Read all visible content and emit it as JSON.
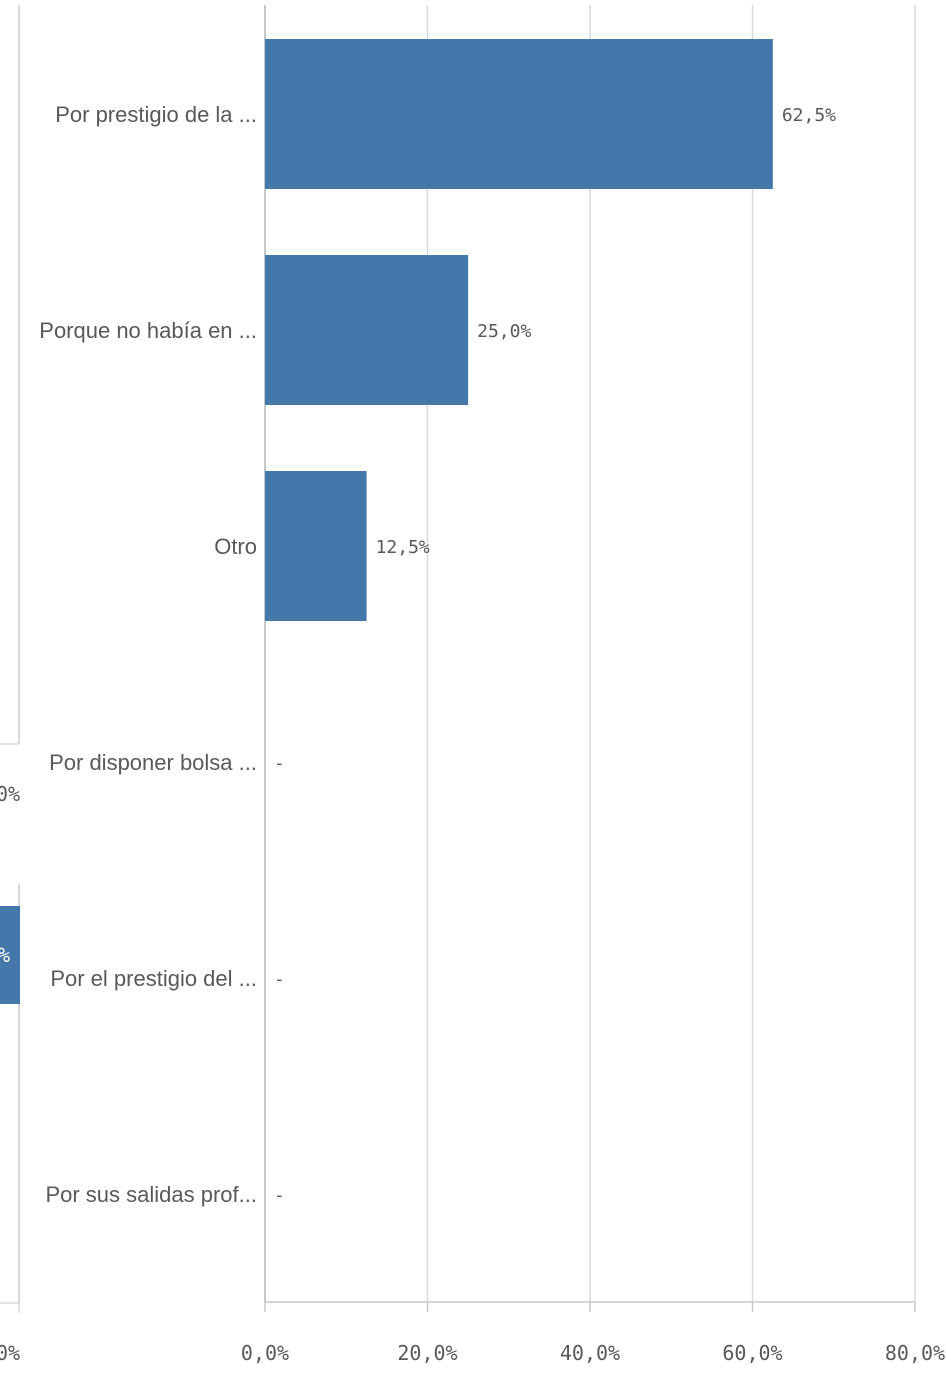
{
  "chart_data": {
    "type": "bar",
    "orientation": "horizontal",
    "categories": [
      "Por prestigio de la ...",
      "Porque no había en ...",
      "Otro",
      "Por disponer bolsa ...",
      "Por el prestigio del ...",
      "Por sus salidas prof..."
    ],
    "values": [
      62.5,
      25.0,
      12.5,
      null,
      null,
      null
    ],
    "value_labels": [
      "62,5%",
      "25,0%",
      "12,5%",
      "-",
      "-",
      "-"
    ],
    "xlim": [
      0,
      80
    ],
    "x_ticks": [
      0,
      20,
      40,
      60,
      80
    ],
    "x_tick_labels": [
      "0,0%",
      "20,0%",
      "40,0%",
      "60,0%",
      "80,0%"
    ],
    "bar_color": "#4477aa",
    "grid": true,
    "title": "",
    "xlabel": "",
    "ylabel": ""
  },
  "clipped_left_fragment": {
    "labels": [
      "0%",
      "%",
      "0%"
    ],
    "bar_color": "#4477aa"
  }
}
